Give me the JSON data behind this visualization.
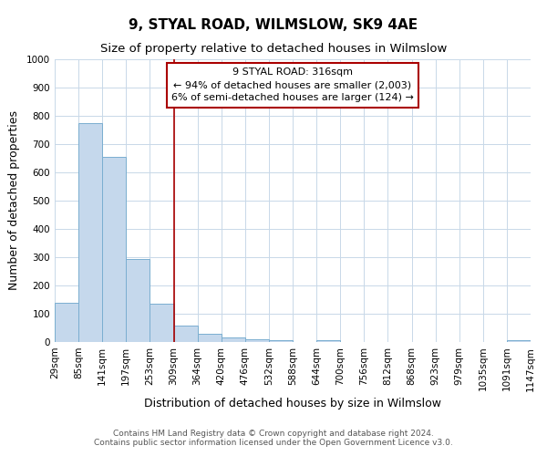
{
  "title": "9, STYAL ROAD, WILMSLOW, SK9 4AE",
  "subtitle": "Size of property relative to detached houses in Wilmslow",
  "xlabel": "Distribution of detached houses by size in Wilmslow",
  "ylabel": "Number of detached properties",
  "bar_color": "#c5d8ec",
  "bar_edge_color": "#7aaed0",
  "background_color": "#ffffff",
  "grid_color": "#c8d8e8",
  "bins": [
    "29sqm",
    "85sqm",
    "141sqm",
    "197sqm",
    "253sqm",
    "309sqm",
    "364sqm",
    "420sqm",
    "476sqm",
    "532sqm",
    "588sqm",
    "644sqm",
    "700sqm",
    "756sqm",
    "812sqm",
    "868sqm",
    "923sqm",
    "979sqm",
    "1035sqm",
    "1091sqm",
    "1147sqm"
  ],
  "bar_values": [
    140,
    775,
    655,
    295,
    135,
    58,
    30,
    15,
    10,
    5,
    0,
    5,
    0,
    0,
    0,
    0,
    0,
    0,
    0,
    5
  ],
  "ylim": [
    0,
    1000
  ],
  "annotation_title": "9 STYAL ROAD: 316sqm",
  "annotation_line1": "← 94% of detached houses are smaller (2,003)",
  "annotation_line2": "6% of semi-detached houses are larger (124) →",
  "red_line_color": "#aa0000",
  "annotation_box_color": "#ffffff",
  "annotation_box_edge": "#aa0000",
  "footer_line1": "Contains HM Land Registry data © Crown copyright and database right 2024.",
  "footer_line2": "Contains public sector information licensed under the Open Government Licence v3.0.",
  "title_fontsize": 11,
  "subtitle_fontsize": 9.5,
  "axis_label_fontsize": 9,
  "tick_fontsize": 7.5,
  "annotation_fontsize": 8,
  "footer_fontsize": 6.5
}
